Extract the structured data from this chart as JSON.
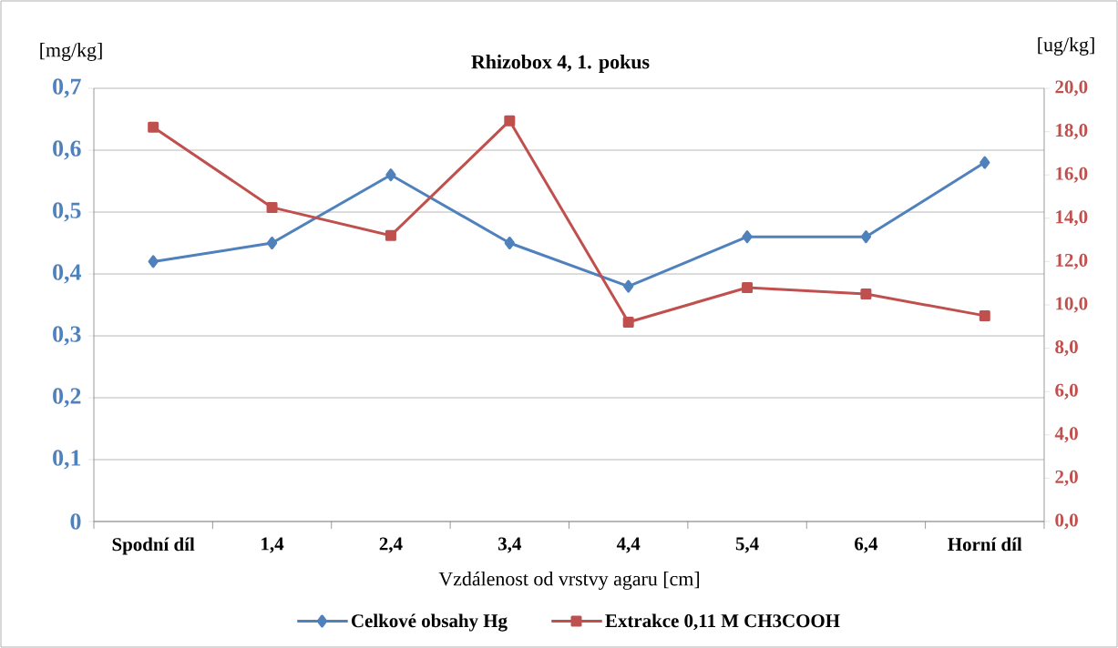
{
  "chart_data": {
    "type": "line",
    "title": "Rhizobox 4, 1. pokus",
    "xlabel": "Vzdálenost od vrstvy agaru [cm]",
    "ylabel": "[mg/kg]",
    "y2label": "[ug/kg]",
    "categories": [
      "Spodní díl",
      "1,4",
      "2,4",
      "3,4",
      "4,4",
      "5,4",
      "6,4",
      "Horní díl"
    ],
    "series": [
      {
        "name": "Celkové obsahy Hg",
        "color": "#4f81bd",
        "marker": "diamond",
        "values": [
          0.42,
          0.45,
          0.56,
          0.45,
          0.38,
          0.46,
          0.46,
          0.58
        ]
      },
      {
        "name": "Extrakce 0,11 M CH3COOH",
        "color": "#c0504d",
        "marker": "square",
        "axis": "y2",
        "values": [
          18.2,
          14.5,
          13.2,
          18.5,
          9.2,
          10.8,
          10.5,
          9.5
        ]
      }
    ],
    "ylim": [
      0,
      0.7
    ],
    "yticks": [
      {
        "value": 0,
        "label": "0"
      },
      {
        "value": 0.1,
        "label": "0,1"
      },
      {
        "value": 0.2,
        "label": "0,2"
      },
      {
        "value": 0.3,
        "label": "0,3"
      },
      {
        "value": 0.4,
        "label": "0,4"
      },
      {
        "value": 0.5,
        "label": "0,5"
      },
      {
        "value": 0.6,
        "label": "0,6"
      },
      {
        "value": 0.7,
        "label": "0,7"
      }
    ],
    "y2lim": [
      0,
      20
    ],
    "y2ticks": [
      {
        "value": 0,
        "label": "0,0"
      },
      {
        "value": 2,
        "label": "2,0"
      },
      {
        "value": 4,
        "label": "4,0"
      },
      {
        "value": 6,
        "label": "6,0"
      },
      {
        "value": 8,
        "label": "8,0"
      },
      {
        "value": 10,
        "label": "10,0"
      },
      {
        "value": 12,
        "label": "12,0"
      },
      {
        "value": 14,
        "label": "14,0"
      },
      {
        "value": 16,
        "label": "16,0"
      },
      {
        "value": 18,
        "label": "18,0"
      },
      {
        "value": 20,
        "label": "20,0"
      }
    ],
    "grid": "y",
    "legend": "bottom",
    "line_style": "solid"
  }
}
